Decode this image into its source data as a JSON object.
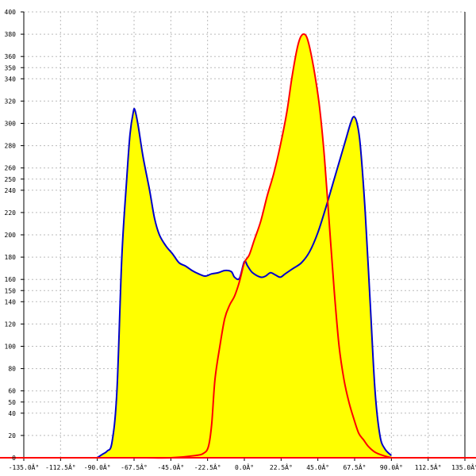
{
  "chart_data": {
    "type": "area",
    "title": "",
    "xlabel": "",
    "ylabel": "",
    "xlim": [
      -135,
      135
    ],
    "ylim": [
      0,
      400
    ],
    "grid": true,
    "legend": "none",
    "x_ticks": [
      {
        "value": -135,
        "label": "-135.0Â°"
      },
      {
        "value": -112.5,
        "label": "-112.5Â°"
      },
      {
        "value": -90,
        "label": "-90.0Â°"
      },
      {
        "value": -67.5,
        "label": "-67.5Â°"
      },
      {
        "value": -45,
        "label": "-45.0Â°"
      },
      {
        "value": -22.5,
        "label": "-22.5Â°"
      },
      {
        "value": 0,
        "label": "0.0Â°"
      },
      {
        "value": 22.5,
        "label": "22.5Â°"
      },
      {
        "value": 45,
        "label": "45.0Â°"
      },
      {
        "value": 67.5,
        "label": "67.5Â°"
      },
      {
        "value": 90,
        "label": "90.0Â°"
      },
      {
        "value": 112.5,
        "label": "112.5Â°"
      },
      {
        "value": 135,
        "label": "135.0Â°"
      }
    ],
    "y_ticks": [
      0,
      20,
      40,
      50,
      60,
      80,
      100,
      120,
      140,
      150,
      160,
      180,
      200,
      220,
      240,
      250,
      260,
      280,
      300,
      320,
      340,
      350,
      360,
      380,
      400
    ],
    "colors": {
      "fill": "#ffff00",
      "blue_line": "#0000cc",
      "red_line": "#ff0000",
      "grid": "#bbbbbb",
      "axis": "#000000",
      "x_axis_line": "#ff0000"
    },
    "series": [
      {
        "color": "blue",
        "points": [
          [
            -90,
            0
          ],
          [
            -87,
            3
          ],
          [
            -84,
            6
          ],
          [
            -81,
            14
          ],
          [
            -78,
            60
          ],
          [
            -75,
            180
          ],
          [
            -72,
            250
          ],
          [
            -70,
            290
          ],
          [
            -68,
            310
          ],
          [
            -67,
            312
          ],
          [
            -65,
            298
          ],
          [
            -62,
            270
          ],
          [
            -58,
            240
          ],
          [
            -55,
            215
          ],
          [
            -52,
            200
          ],
          [
            -48,
            190
          ],
          [
            -44,
            183
          ],
          [
            -40,
            175
          ],
          [
            -36,
            172
          ],
          [
            -32,
            168
          ],
          [
            -28,
            165
          ],
          [
            -24,
            163
          ],
          [
            -20,
            165
          ],
          [
            -16,
            166
          ],
          [
            -12,
            168
          ],
          [
            -8,
            167
          ],
          [
            -6,
            162
          ],
          [
            -3,
            161
          ],
          [
            0,
            176
          ],
          [
            2,
            172
          ],
          [
            5,
            166
          ],
          [
            10,
            162
          ],
          [
            13,
            163
          ],
          [
            16,
            166
          ],
          [
            19,
            164
          ],
          [
            22,
            162
          ],
          [
            25,
            165
          ],
          [
            30,
            170
          ],
          [
            35,
            175
          ],
          [
            40,
            185
          ],
          [
            45,
            202
          ],
          [
            50,
            225
          ],
          [
            55,
            250
          ],
          [
            58,
            265
          ],
          [
            62,
            285
          ],
          [
            65,
            300
          ],
          [
            67,
            306
          ],
          [
            69,
            300
          ],
          [
            71,
            280
          ],
          [
            74,
            220
          ],
          [
            77,
            140
          ],
          [
            80,
            60
          ],
          [
            83,
            20
          ],
          [
            86,
            8
          ],
          [
            90,
            2
          ]
        ]
      },
      {
        "color": "red",
        "points": [
          [
            -90,
            0
          ],
          [
            -80,
            0
          ],
          [
            -70,
            0
          ],
          [
            -60,
            0
          ],
          [
            -45,
            0
          ],
          [
            -30,
            2
          ],
          [
            -25,
            4
          ],
          [
            -22,
            10
          ],
          [
            -20,
            30
          ],
          [
            -18,
            70
          ],
          [
            -15,
            100
          ],
          [
            -12,
            125
          ],
          [
            -9,
            137
          ],
          [
            -6,
            145
          ],
          [
            -3,
            158
          ],
          [
            0,
            175
          ],
          [
            3,
            182
          ],
          [
            6,
            195
          ],
          [
            10,
            212
          ],
          [
            14,
            235
          ],
          [
            18,
            255
          ],
          [
            22,
            280
          ],
          [
            26,
            310
          ],
          [
            29,
            340
          ],
          [
            32,
            365
          ],
          [
            34,
            376
          ],
          [
            36,
            380
          ],
          [
            38,
            378
          ],
          [
            40,
            368
          ],
          [
            43,
            345
          ],
          [
            46,
            315
          ],
          [
            49,
            270
          ],
          [
            52,
            210
          ],
          [
            55,
            150
          ],
          [
            58,
            100
          ],
          [
            61,
            70
          ],
          [
            64,
            50
          ],
          [
            67,
            35
          ],
          [
            70,
            22
          ],
          [
            73,
            16
          ],
          [
            76,
            10
          ],
          [
            80,
            5
          ],
          [
            85,
            2
          ],
          [
            90,
            0
          ]
        ]
      }
    ]
  }
}
